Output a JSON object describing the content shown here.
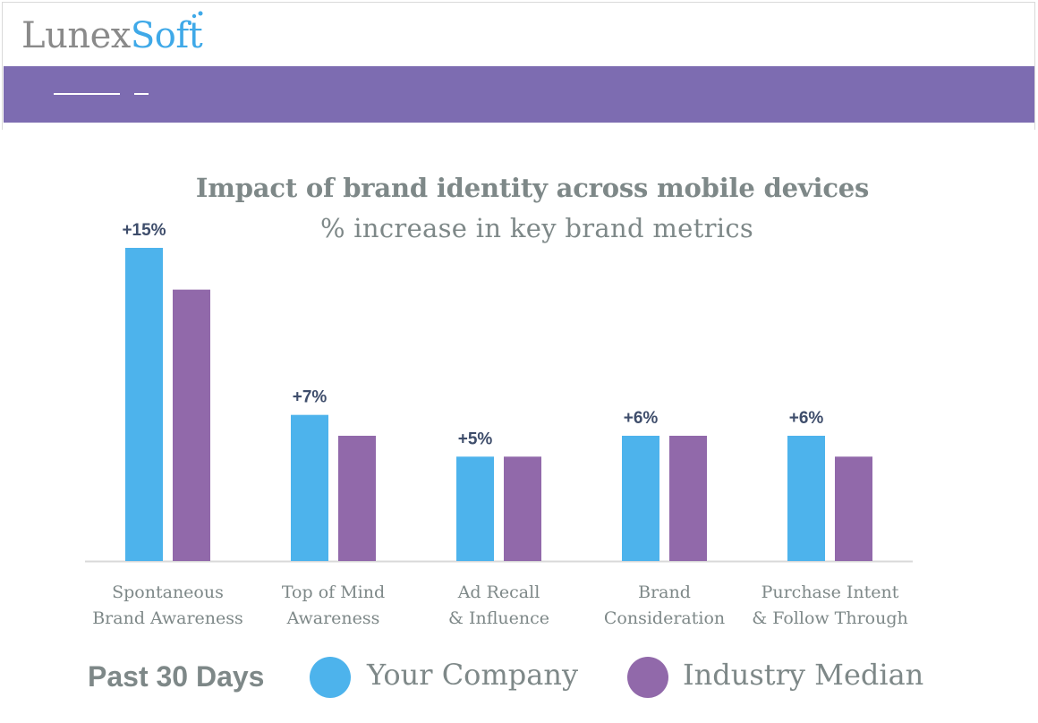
{
  "header": {
    "logo_part1": "Lunex",
    "logo_part2": "Soft"
  },
  "colors": {
    "your_company": "#4db3ec",
    "industry_median": "#9169aa",
    "banner": "#7d6cb1",
    "label_text": "#7e8888",
    "value_text": "#3e4d6b"
  },
  "chart_data": {
    "type": "bar",
    "title": "Impact of brand identity across mobile devices",
    "subtitle": "% increase in key brand metrics",
    "categories": [
      [
        "Spontaneous",
        "Brand Awareness"
      ],
      [
        "Top of Mind",
        "Awareness"
      ],
      [
        "Ad Recall",
        "& Influence"
      ],
      [
        "Brand",
        "Consideration"
      ],
      [
        "Purchase Intent",
        "& Follow Through"
      ]
    ],
    "series": [
      {
        "name": "Your Company",
        "values": [
          15,
          7,
          5,
          6,
          6
        ],
        "labels": [
          "+15%",
          "+7%",
          "+5%",
          "+6%",
          "+6%"
        ]
      },
      {
        "name": "Industry Median",
        "values": [
          13,
          6,
          5,
          6,
          5
        ]
      }
    ],
    "ylim": [
      0,
      15
    ],
    "legend_title": "Past 30 Days",
    "legend_position": "bottom",
    "grid": false
  }
}
